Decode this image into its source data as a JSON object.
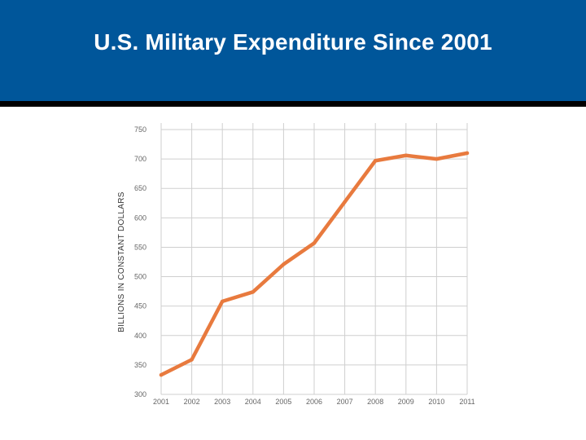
{
  "slide": {
    "title": "U.S. Military Expenditure Since 2001"
  },
  "colors": {
    "title_bar": "#00569a",
    "line": "#e87a3e",
    "grid": "#cfcfcf"
  },
  "chart_data": {
    "type": "line",
    "title": "U.S. Military Expenditure Since 2001",
    "xlabel": "",
    "ylabel": "BILLIONS IN CONSTANT DOLLARS",
    "categories": [
      "2001",
      "2002",
      "2003",
      "2004",
      "2005",
      "2006",
      "2007",
      "2008",
      "2009",
      "2010",
      "2011"
    ],
    "series": [
      {
        "name": "Military expenditure",
        "values": [
          333,
          359,
          458,
          474,
          521,
          557,
          627,
          697,
          706,
          700,
          710
        ]
      }
    ],
    "ylim": [
      300,
      750
    ],
    "yticks": [
      300,
      350,
      400,
      450,
      500,
      550,
      600,
      650,
      700,
      750
    ],
    "grid": true,
    "legend": "none"
  }
}
